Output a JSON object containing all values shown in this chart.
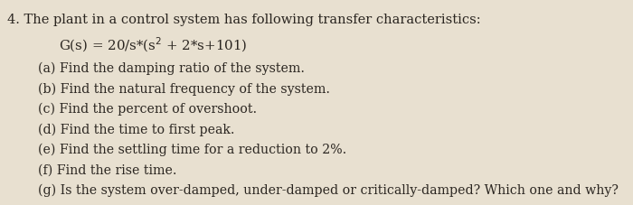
{
  "background_color": "#e8e0d0",
  "text_color": "#2a2520",
  "title_line": "4. The plant in a control system has following transfer characteristics:",
  "formula_plain": "G(s) = 20/s*(s^2 + 2*s+101)",
  "items": [
    "(a) Find the damping ratio of the system.",
    "(b) Find the natural frequency of the system.",
    "(c) Find the percent of overshoot.",
    "(d) Find the time to first peak.",
    "(e) Find the settling time for a reduction to 2%.",
    "(f) Find the rise time.",
    "(g) Is the system over-damped, under-damped or critically-damped? Which one and why?"
  ],
  "title_fontsize": 10.5,
  "formula_fontsize": 10.8,
  "item_fontsize": 10.2
}
